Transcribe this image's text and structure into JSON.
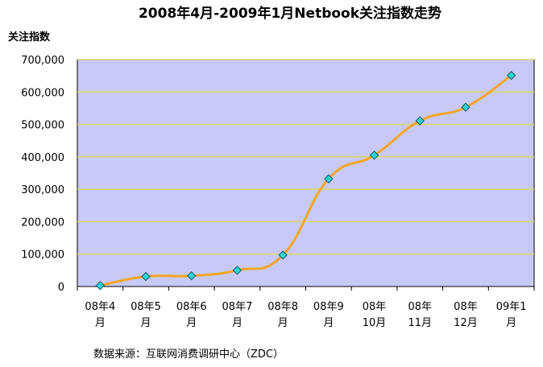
{
  "chart_data": {
    "type": "line",
    "title": "2008年4月-2009年1月Netbook关注指数走势",
    "ylabel": "关注指数",
    "xlabel": "",
    "categories": [
      [
        "08年4",
        "月"
      ],
      [
        "08年5",
        "月"
      ],
      [
        "08年6",
        "月"
      ],
      [
        "08年7",
        "月"
      ],
      [
        "08年8",
        "月"
      ],
      [
        "08年9",
        "月"
      ],
      [
        "08年",
        "10月"
      ],
      [
        "08年",
        "11月"
      ],
      [
        "08年",
        "12月"
      ],
      [
        "09年1",
        "月"
      ]
    ],
    "values": [
      3000,
      31000,
      33000,
      50000,
      97000,
      332000,
      405000,
      511000,
      553000,
      651000
    ],
    "ylim": [
      0,
      700000
    ],
    "yticks": [
      "0",
      "100,000",
      "200,000",
      "300,000",
      "400,000",
      "500,000",
      "600,000",
      "700,000"
    ],
    "grid": true,
    "colors": {
      "plot_bg": "#c9c9f7",
      "gridline": "#d8d860",
      "line": "#f5a623",
      "marker_fill": "#2bd3d6",
      "marker_stroke": "#1a5a66"
    }
  },
  "source": "数据来源：互联网消费调研中心（ZDC）"
}
